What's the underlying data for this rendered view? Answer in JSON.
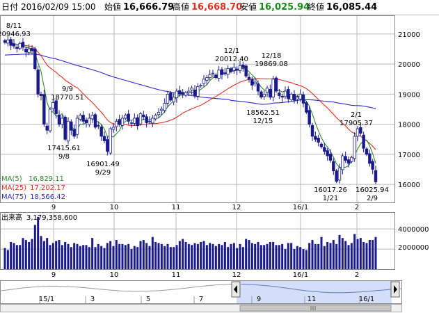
{
  "header": {
    "date_label": "日付",
    "date_value": "2016/02/09 15:00",
    "open_label": "始値",
    "open_value": "16,666.79",
    "high_label": "高値",
    "high_value": "16,668.70",
    "low_label": "安値",
    "low_value": "16,025.94",
    "close_label": "終値",
    "close_value": "16,085.44"
  },
  "colors": {
    "candle": "#1a1a8c",
    "ma5": "#2e8b2e",
    "ma25": "#e03020",
    "ma75": "#2a2ad0",
    "high_value": "#e03020",
    "low_value": "#1a8a1a",
    "navigator_fill": "#c6d3f5"
  },
  "legend": [
    {
      "label": "MA(5)",
      "value": "16,829.11",
      "color": "#2e8b2e"
    },
    {
      "label": "MA(25)",
      "value": "17,202.17",
      "color": "#e03020"
    },
    {
      "label": "MA(75)",
      "value": "18,566.42",
      "color": "#2a2ad0"
    }
  ],
  "volume": {
    "label": "出来高",
    "value": "3,179,358,600",
    "tick_labels": [
      "4000000",
      "2000000"
    ]
  },
  "navigator": {
    "tick_labels": [
      "15/1",
      "3",
      "5",
      "7",
      "9",
      "11",
      "16/1"
    ]
  },
  "chart_data": {
    "type": "candlestick",
    "x_tick_labels": [
      "9",
      "10",
      "11",
      "12",
      "16/1",
      "2"
    ],
    "y_tick_labels": [
      "21000",
      "20000",
      "19000",
      "18000",
      "17000",
      "16000"
    ],
    "ylim": [
      15400,
      21600
    ],
    "annotations": [
      {
        "lines": [
          "8/11",
          "20946.93"
        ],
        "date": "8/11",
        "value": 20946.93
      },
      {
        "lines": [
          "9/9",
          "18770.51"
        ],
        "date": "9/9",
        "value": 18770.51
      },
      {
        "lines": [
          "17415.61",
          "9/8"
        ],
        "date": "9/8",
        "value": 17415.61
      },
      {
        "lines": [
          "16901.49",
          "9/29"
        ],
        "date": "9/29",
        "value": 16901.49
      },
      {
        "lines": [
          "12/1",
          "20012.40"
        ],
        "date": "12/1",
        "value": 20012.4
      },
      {
        "lines": [
          "12/18",
          "19869.08"
        ],
        "date": "12/18",
        "value": 19869.08
      },
      {
        "lines": [
          "18562.51",
          "12/15"
        ],
        "date": "12/15",
        "value": 18562.51
      },
      {
        "lines": [
          "2/1",
          "17905.37"
        ],
        "date": "2/1",
        "value": 17905.37
      },
      {
        "lines": [
          "16017.26",
          "1/21"
        ],
        "date": "1/21",
        "value": 16017.26
      },
      {
        "lines": [
          "16025.94",
          "2/9"
        ],
        "date": "2/9",
        "value": 16025.94
      }
    ],
    "series_close": [
      20720,
      20800,
      20620,
      20600,
      20520,
      20690,
      20560,
      20400,
      20500,
      20450,
      19850,
      19000,
      18950,
      18000,
      17800,
      18500,
      18720,
      18350,
      18000,
      18200,
      17500,
      18100,
      17800,
      17600,
      18200,
      18300,
      18100,
      18050,
      18200,
      18300,
      17900,
      17950,
      17600,
      17450,
      17100,
      17850,
      17900,
      18100,
      18000,
      18200,
      18300,
      18100,
      18050,
      18200,
      17950,
      18350,
      18250,
      18050,
      18100,
      18200,
      18300,
      18400,
      18500,
      18700,
      19000,
      18800,
      18900,
      19100,
      19000,
      19000,
      19050,
      19100,
      19200,
      18950,
      19250,
      19300,
      19500,
      19550,
      19650,
      19700,
      19550,
      19800,
      19650,
      19700,
      19850,
      19750,
      19900,
      19800,
      19950,
      19880,
      19600,
      19500,
      19300,
      19400,
      19100,
      18900,
      19000,
      19200,
      18900,
      19500,
      19100,
      18950,
      18900,
      19100,
      18850,
      19000,
      18800,
      18900,
      19000,
      18700,
      18400,
      18000,
      17600,
      17500,
      17400,
      17250,
      17100,
      16950,
      16800,
      16450,
      16100,
      16550,
      16950,
      16800,
      16700,
      16900,
      17600,
      17850,
      17700,
      17200,
      17000,
      16700,
      16500,
      16085
    ],
    "series_volume": [
      2100,
      1900,
      2700,
      2600,
      2400,
      2400,
      3100,
      2900,
      2700,
      3000,
      4400,
      5200,
      3300,
      2800,
      3100,
      2400,
      2600,
      2800,
      2900,
      2400,
      2700,
      2500,
      2200,
      2600,
      2500,
      2300,
      2400,
      2400,
      2200,
      3100,
      2200,
      2500,
      2300,
      2100,
      2600,
      2800,
      2300,
      2900,
      2500,
      2500,
      2400,
      2500,
      2000,
      2300,
      2200,
      2800,
      2900,
      2600,
      2300,
      3200,
      2700,
      2600,
      2500,
      2300,
      2500,
      2200,
      2200,
      2400,
      2800,
      3000,
      2700,
      2500,
      2400,
      2600,
      2500,
      2700,
      2800,
      2400,
      2600,
      2500,
      2300,
      2500,
      2400,
      2700,
      2200,
      2500,
      2600,
      2100,
      2500,
      2200,
      3000,
      2900,
      2600,
      2500,
      2700,
      2400,
      2400,
      2500,
      2700,
      2700,
      2400,
      2400,
      2500,
      2000,
      2600,
      2600,
      2000,
      2300,
      2200,
      2000,
      1900,
      2600,
      2900,
      2500,
      2500,
      3200,
      2300,
      2700,
      2600,
      2900,
      2500,
      3400,
      3100,
      2800,
      2400,
      2600,
      3500,
      3000,
      3100,
      2700,
      2600,
      2900,
      2900,
      3200
    ]
  }
}
